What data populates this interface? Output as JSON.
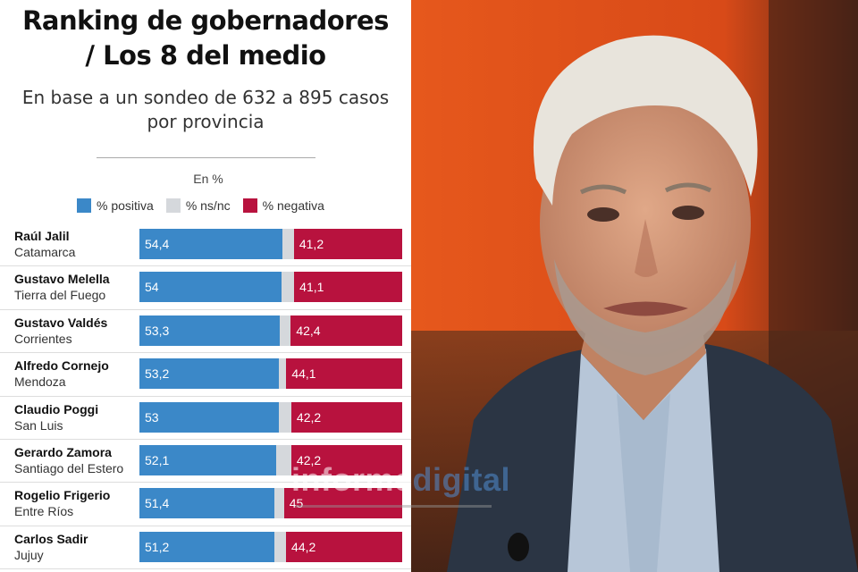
{
  "chart_data": {
    "type": "bar",
    "stacked": true,
    "orientation": "horizontal",
    "title": [
      "Ranking de gobernadores",
      "/ Los 8 del medio"
    ],
    "subtitle": [
      "En base a un sondeo de 632 a 895 casos",
      "por provincia"
    ],
    "unit_label": "En %",
    "legend": [
      {
        "label": "% positiva",
        "color": "#3b88c8"
      },
      {
        "label": "% ns/nc",
        "color": "#d5d8dc"
      },
      {
        "label": "% negativa",
        "color": "#b8123e"
      }
    ],
    "categories": [
      {
        "name": "Raúl Jalil",
        "province": "Catamarca"
      },
      {
        "name": "Gustavo Melella",
        "province": "Tierra del Fuego"
      },
      {
        "name": "Gustavo Valdés",
        "province": "Corrientes"
      },
      {
        "name": "Alfredo Cornejo",
        "province": "Mendoza"
      },
      {
        "name": "Claudio Poggi",
        "province": "San Luis"
      },
      {
        "name": "Gerardo Zamora",
        "province": "Santiago del Estero"
      },
      {
        "name": "Rogelio Frigerio",
        "province": "Entre Ríos"
      },
      {
        "name": "Carlos Sadir",
        "province": "Jujuy"
      }
    ],
    "series": [
      {
        "name": "% positiva",
        "values": [
          54.4,
          54,
          53.3,
          53.2,
          53,
          52.1,
          51.4,
          51.2
        ],
        "labels": [
          "54,4",
          "54",
          "53,3",
          "53,2",
          "53",
          "52,1",
          "51,4",
          "51,2"
        ]
      },
      {
        "name": "% negativa",
        "values": [
          41.2,
          41.1,
          42.4,
          44.1,
          42.2,
          42.2,
          45,
          44.2
        ],
        "labels": [
          "41,2",
          "41,1",
          "42,4",
          "44,1",
          "42,2",
          "42,2",
          "45",
          "44,2"
        ]
      }
    ],
    "xlim": [
      0,
      100
    ]
  },
  "watermark": {
    "part1": "informe",
    "part2": "digital"
  }
}
